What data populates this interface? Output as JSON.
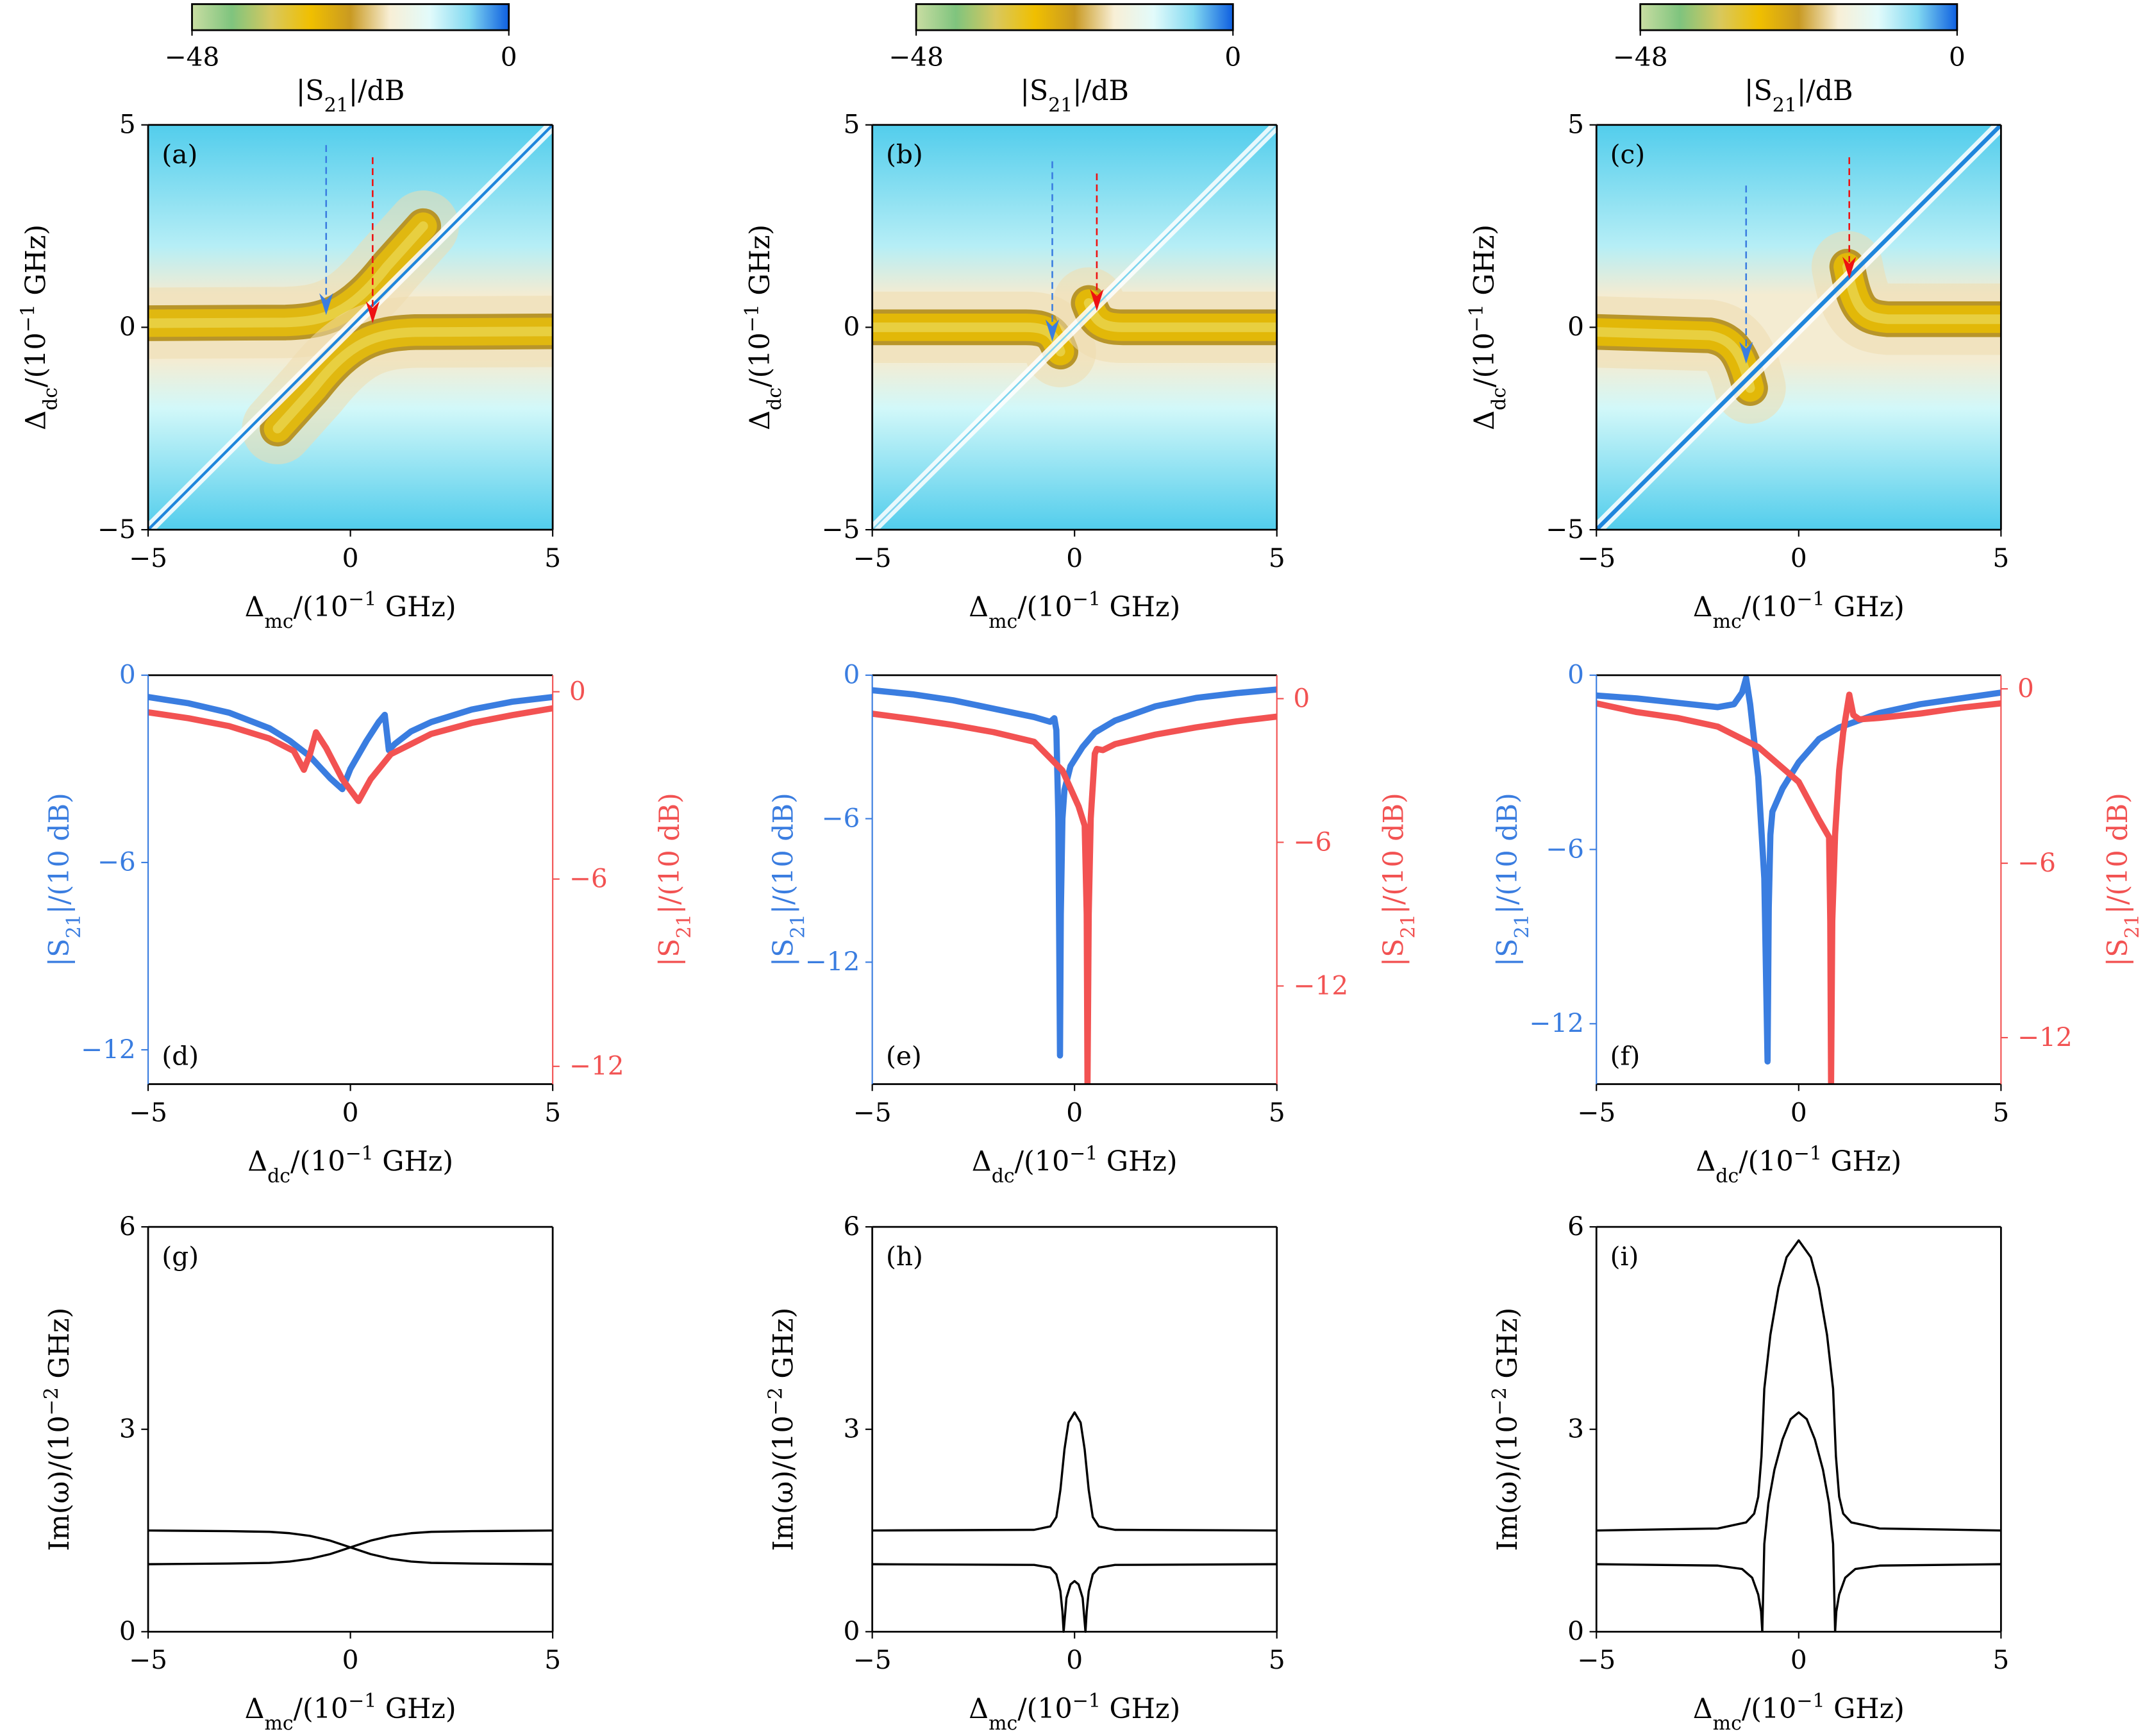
{
  "colorbar": {
    "min_label": "−48",
    "max_label": "0",
    "label": "|S_{21}|/dB",
    "range": [
      -48,
      0
    ],
    "colors": [
      "#c9dda2",
      "#7fc47e",
      "#d8c85e",
      "#f0bf00",
      "#c99a22",
      "#f8efd6",
      "#e2fbfb",
      "#82d9f1",
      "#0e5fe0"
    ]
  },
  "colors": {
    "blue": "#3a7de0",
    "red": "#f25252",
    "black": "#000000"
  },
  "chart_data": [
    {
      "panel": "(a)",
      "type": "heatmap",
      "xlabel": "Δ_{mc}/(10^{−1} GHz)",
      "ylabel": "Δ_{dc}/(10^{−1} GHz)",
      "xlim": [
        -5,
        5
      ],
      "ylim": [
        -5,
        5
      ],
      "xticks": [
        "−5",
        "0",
        "5"
      ],
      "yticks": [
        "−5",
        "0",
        "5"
      ],
      "arrows": [
        {
          "color": "#3a7de0",
          "x": -0.6,
          "from": 4.5,
          "to": 0.3
        },
        {
          "color": "#ee1111",
          "x": 0.55,
          "from": 4.2,
          "to": 0.1
        }
      ]
    },
    {
      "panel": "(b)",
      "type": "heatmap",
      "xlabel": "Δ_{mc}/(10^{−1} GHz)",
      "ylabel": "Δ_{dc}/(10^{−1} GHz)",
      "xlim": [
        -5,
        5
      ],
      "ylim": [
        -5,
        5
      ],
      "xticks": [
        "−5",
        "0",
        "5"
      ],
      "yticks": [
        "−5",
        "0",
        "5"
      ],
      "arrows": [
        {
          "color": "#3a7de0",
          "x": -0.55,
          "from": 4.1,
          "to": -0.35
        },
        {
          "color": "#ee1111",
          "x": 0.55,
          "from": 3.8,
          "to": 0.4
        }
      ]
    },
    {
      "panel": "(c)",
      "type": "heatmap",
      "xlabel": "Δ_{mc}/(10^{−1} GHz)",
      "ylabel": "Δ_{dc}/(10^{−1} GHz)",
      "xlim": [
        -5,
        5
      ],
      "ylim": [
        -5,
        5
      ],
      "xticks": [
        "−5",
        "0",
        "5"
      ],
      "yticks": [
        "−5",
        "0",
        "5"
      ],
      "arrows": [
        {
          "color": "#3a7de0",
          "x": -1.3,
          "from": 3.5,
          "to": -0.9
        },
        {
          "color": "#ee1111",
          "x": 1.25,
          "from": 4.2,
          "to": 1.2
        }
      ]
    },
    {
      "panel": "(d)",
      "type": "line",
      "xlabel": "Δ_{dc}/(10^{−1} GHz)",
      "ylabel_left": "|S_{21}|/(10 dB)",
      "ylabel_right": "|S_{21}|/(10 dB)",
      "xlim": [
        -5,
        5
      ],
      "ylim_left": [
        -13.1,
        0
      ],
      "ylim_right": [
        -12.57,
        0.53
      ],
      "xticks": [
        "−5",
        "0",
        "5"
      ],
      "yticks_left": [
        0,
        -6,
        -12
      ],
      "yticks_right": [
        0,
        -6,
        -12
      ],
      "series": [
        {
          "axis": "left",
          "color": "#3a7de0",
          "x": [
            -5,
            -4,
            -3,
            -2,
            -1.5,
            -1,
            -0.5,
            -0.2,
            0,
            0.4,
            0.7,
            0.85,
            0.95,
            1.1,
            1.5,
            2,
            3,
            4,
            5
          ],
          "y": [
            -0.7,
            -0.9,
            -1.2,
            -1.7,
            -2.1,
            -2.6,
            -3.3,
            -3.65,
            -3.0,
            -2.1,
            -1.5,
            -1.27,
            -2.4,
            -2.2,
            -1.8,
            -1.5,
            -1.1,
            -0.85,
            -0.7
          ]
        },
        {
          "axis": "right",
          "color": "#f25252",
          "x": [
            -5,
            -4,
            -3,
            -2,
            -1.4,
            -1.15,
            -1.0,
            -0.85,
            -0.6,
            -0.2,
            0.2,
            0.5,
            1,
            2,
            3,
            4,
            5
          ],
          "y": [
            -0.66,
            -0.85,
            -1.1,
            -1.5,
            -1.9,
            -2.5,
            -2.0,
            -1.3,
            -1.8,
            -2.8,
            -3.5,
            -2.8,
            -2.0,
            -1.35,
            -1.0,
            -0.75,
            -0.53
          ]
        }
      ]
    },
    {
      "panel": "(e)",
      "type": "line",
      "xlabel": "Δ_{dc}/(10^{−1} GHz)",
      "ylabel_left": "|S_{21}|/(10 dB)",
      "ylabel_right": "|S_{21}|/(10 dB)",
      "xlim": [
        -5,
        5
      ],
      "ylim_left": [
        -17.1,
        0
      ],
      "ylim_right": [
        -16.1,
        0.98
      ],
      "xticks": [
        "−5",
        "0",
        "5"
      ],
      "yticks_left": [
        0,
        -6,
        -12
      ],
      "yticks_right": [
        0,
        -6,
        -12
      ],
      "series": [
        {
          "axis": "left",
          "color": "#3a7de0",
          "x": [
            -5,
            -4,
            -3,
            -2,
            -1,
            -0.6,
            -0.5,
            -0.45,
            -0.4,
            -0.36,
            -0.34,
            -0.3,
            -0.25,
            -0.1,
            0.2,
            0.5,
            1,
            2,
            3,
            4,
            5
          ],
          "y": [
            -0.63,
            -0.8,
            -1.05,
            -1.4,
            -1.75,
            -1.95,
            -1.8,
            -2.3,
            -6,
            -15.9,
            -10,
            -6,
            -4.8,
            -3.8,
            -3.0,
            -2.4,
            -1.9,
            -1.3,
            -0.95,
            -0.75,
            -0.6
          ]
        },
        {
          "axis": "right",
          "color": "#f25252",
          "x": [
            -5,
            -4,
            -3,
            -2,
            -1,
            -0.3,
            0.1,
            0.25,
            0.3,
            0.32,
            0.35,
            0.4,
            0.5,
            0.55,
            0.7,
            1,
            2,
            3,
            4,
            5
          ],
          "y": [
            -0.63,
            -0.85,
            -1.1,
            -1.4,
            -1.8,
            -3.0,
            -4.5,
            -5.3,
            -9,
            -16.1,
            -9,
            -5,
            -2.3,
            -2.1,
            -2.15,
            -1.9,
            -1.5,
            -1.2,
            -0.95,
            -0.75
          ]
        }
      ]
    },
    {
      "panel": "(f)",
      "type": "line",
      "xlabel": "Δ_{dc}/(10^{−1} GHz)",
      "ylabel_left": "|S_{21}|/(10 dB)",
      "ylabel_right": "|S_{21}|/(10 dB)",
      "xlim": [
        -5,
        5
      ],
      "ylim_left": [
        -14.08,
        0
      ],
      "ylim_right": [
        -13.6,
        0.47
      ],
      "xticks": [
        "−5",
        "0",
        "5"
      ],
      "yticks_left": [
        0,
        -6,
        -12
      ],
      "yticks_right": [
        0,
        -6,
        -12
      ],
      "series": [
        {
          "axis": "left",
          "color": "#3a7de0",
          "x": [
            -5,
            -4,
            -3,
            -2,
            -1.6,
            -1.4,
            -1.3,
            -1.2,
            -1.0,
            -0.85,
            -0.77,
            -0.74,
            -0.7,
            -0.65,
            -0.4,
            0,
            0.5,
            1,
            2,
            3,
            4,
            5
          ],
          "y": [
            -0.7,
            -0.8,
            -0.95,
            -1.1,
            -1.0,
            -0.6,
            -0.1,
            -1.0,
            -3.5,
            -7,
            -13.3,
            -8,
            -5.5,
            -4.7,
            -3.9,
            -3.0,
            -2.2,
            -1.8,
            -1.3,
            -1.0,
            -0.8,
            -0.6
          ]
        },
        {
          "axis": "right",
          "color": "#f25252",
          "x": [
            -5,
            -4,
            -3,
            -2,
            -1,
            0,
            0.5,
            0.75,
            0.78,
            0.8,
            0.83,
            0.9,
            1.0,
            1.1,
            1.25,
            1.35,
            1.5,
            2,
            3,
            4,
            5
          ],
          "y": [
            -0.5,
            -0.8,
            -1.0,
            -1.3,
            -2.0,
            -3.2,
            -4.5,
            -5.1,
            -8,
            -13.6,
            -8,
            -5,
            -2.8,
            -1.5,
            -0.2,
            -0.9,
            -1.05,
            -1.0,
            -0.85,
            -0.65,
            -0.5
          ]
        }
      ]
    },
    {
      "panel": "(g)",
      "type": "line",
      "xlabel": "Δ_{mc}/(10^{−1} GHz)",
      "ylabel": "Im(ω)/(10^{−2} GHz)",
      "xlim": [
        -5,
        5
      ],
      "ylim": [
        0,
        6
      ],
      "xticks": [
        "−5",
        "0",
        "5"
      ],
      "yticks": [
        "0",
        "3",
        "6"
      ],
      "series": [
        {
          "color": "#000000",
          "x": [
            -5,
            -3,
            -2,
            -1.5,
            -1,
            -0.5,
            0,
            0.5,
            1,
            1.5,
            2,
            3,
            5
          ],
          "y": [
            1.5,
            1.49,
            1.48,
            1.46,
            1.42,
            1.35,
            1.25,
            1.15,
            1.08,
            1.04,
            1.02,
            1.01,
            1.0
          ]
        },
        {
          "color": "#000000",
          "x": [
            -5,
            -3,
            -2,
            -1.5,
            -1,
            -0.5,
            0,
            0.5,
            1,
            1.5,
            2,
            3,
            5
          ],
          "y": [
            1.0,
            1.01,
            1.02,
            1.04,
            1.08,
            1.15,
            1.25,
            1.35,
            1.42,
            1.46,
            1.48,
            1.49,
            1.5
          ]
        }
      ]
    },
    {
      "panel": "(h)",
      "type": "line",
      "xlabel": "Δ_{mc}/(10^{−1} GHz)",
      "ylabel": "Im(ω)/(10^{−2} GHz)",
      "xlim": [
        -5,
        5
      ],
      "ylim": [
        0,
        6
      ],
      "xticks": [
        "−5",
        "0",
        "5"
      ],
      "yticks": [
        "0",
        "3",
        "6"
      ],
      "series": [
        {
          "color": "#000000",
          "x": [
            -5,
            -1,
            -0.6,
            -0.45,
            -0.35,
            -0.25,
            -0.15,
            0,
            0.15,
            0.25,
            0.35,
            0.45,
            0.6,
            1,
            5
          ],
          "y": [
            1.5,
            1.51,
            1.56,
            1.7,
            2.1,
            2.7,
            3.1,
            3.25,
            3.1,
            2.7,
            2.1,
            1.7,
            1.56,
            1.51,
            1.5
          ]
        },
        {
          "color": "#000000",
          "x": [
            -5,
            -1,
            -0.6,
            -0.45,
            -0.35,
            -0.3,
            -0.27,
            -0.2,
            -0.1,
            0,
            0.1,
            0.2,
            0.27,
            0.3,
            0.35,
            0.45,
            0.6,
            1,
            5
          ],
          "y": [
            1.0,
            0.99,
            0.95,
            0.85,
            0.6,
            0.3,
            0,
            0.5,
            0.7,
            0.75,
            0.7,
            0.5,
            0,
            0.3,
            0.6,
            0.85,
            0.95,
            0.99,
            1.0
          ]
        }
      ]
    },
    {
      "panel": "(i)",
      "type": "line",
      "xlabel": "Δ_{mc}/(10^{−1} GHz)",
      "ylabel": "Im(ω)/(10^{−2} GHz)",
      "xlim": [
        -5,
        5
      ],
      "ylim": [
        0,
        6
      ],
      "xticks": [
        "−5",
        "0",
        "5"
      ],
      "yticks": [
        "0",
        "3",
        "6"
      ],
      "series": [
        {
          "color": "#000000",
          "x": [
            -5,
            -2,
            -1.3,
            -1.1,
            -1.0,
            -0.92,
            -0.85,
            -0.7,
            -0.5,
            -0.3,
            0,
            0.3,
            0.5,
            0.7,
            0.85,
            0.92,
            1.0,
            1.1,
            1.3,
            2,
            5
          ],
          "y": [
            1.5,
            1.53,
            1.62,
            1.75,
            2.0,
            2.6,
            3.6,
            4.4,
            5.1,
            5.55,
            5.8,
            5.55,
            5.1,
            4.4,
            3.6,
            2.6,
            2.0,
            1.75,
            1.62,
            1.53,
            1.5
          ]
        },
        {
          "color": "#000000",
          "x": [
            -0.9,
            -0.85,
            -0.75,
            -0.6,
            -0.4,
            -0.2,
            0,
            0.2,
            0.4,
            0.6,
            0.75,
            0.85,
            0.9
          ],
          "y": [
            0,
            1.3,
            1.9,
            2.4,
            2.85,
            3.15,
            3.25,
            3.15,
            2.85,
            2.4,
            1.9,
            1.3,
            0
          ]
        },
        {
          "color": "#000000",
          "x": [
            -5,
            -2,
            -1.4,
            -1.15,
            -1.0,
            -0.93,
            -0.9
          ],
          "y": [
            1.0,
            0.98,
            0.93,
            0.8,
            0.55,
            0.3,
            0
          ]
        },
        {
          "color": "#000000",
          "x": [
            0.9,
            0.93,
            1.0,
            1.15,
            1.4,
            2,
            5
          ],
          "y": [
            0,
            0.3,
            0.55,
            0.8,
            0.93,
            0.98,
            1.0
          ]
        }
      ]
    }
  ]
}
